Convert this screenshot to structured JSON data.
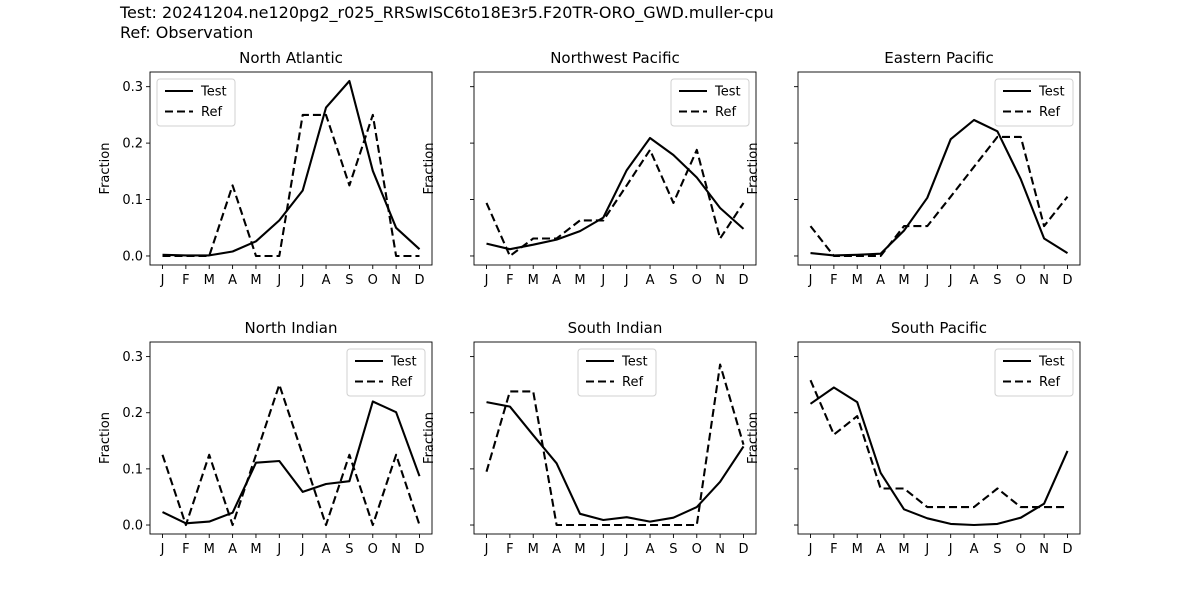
{
  "header": {
    "test_line": "Test: 20241204.ne120pg2_r025_RRSwISC6to18E3r5.F20TR-ORO_GWD.muller-cpu",
    "ref_line": "Ref: Observation"
  },
  "chart_data": [
    {
      "type": "line",
      "title": "North Atlantic",
      "xlabel": "",
      "ylabel": "Fraction",
      "categories": [
        "J",
        "F",
        "M",
        "A",
        "M",
        "J",
        "J",
        "A",
        "S",
        "O",
        "N",
        "D"
      ],
      "ylim": [
        -0.016,
        0.326
      ],
      "yticks": [
        0.0,
        0.1,
        0.2,
        0.3
      ],
      "yticklabels": [
        "0.0",
        "0.1",
        "0.2",
        "0.3"
      ],
      "legend": "top-left",
      "series": [
        {
          "name": "Test",
          "style": "solid",
          "values": [
            0.002,
            0.001,
            0.001,
            0.008,
            0.026,
            0.063,
            0.116,
            0.263,
            0.31,
            0.151,
            0.05,
            0.012
          ]
        },
        {
          "name": "Ref",
          "style": "dashed",
          "values": [
            0.0,
            0.0,
            0.0,
            0.125,
            0.0,
            0.0,
            0.25,
            0.25,
            0.125,
            0.25,
            0.0,
            0.0
          ]
        }
      ]
    },
    {
      "type": "line",
      "title": "Northwest Pacific",
      "xlabel": "",
      "ylabel": "Fraction",
      "categories": [
        "J",
        "F",
        "M",
        "A",
        "M",
        "J",
        "J",
        "A",
        "S",
        "O",
        "N",
        "D"
      ],
      "ylim": [
        -0.016,
        0.326
      ],
      "yticks": [
        0.0,
        0.1,
        0.2,
        0.3
      ],
      "yticklabels": [
        "",
        "",
        "",
        ""
      ],
      "legend": "top-right",
      "series": [
        {
          "name": "Test",
          "style": "solid",
          "values": [
            0.022,
            0.012,
            0.02,
            0.029,
            0.044,
            0.068,
            0.152,
            0.209,
            0.179,
            0.139,
            0.085,
            0.048
          ]
        },
        {
          "name": "Ref",
          "style": "dashed",
          "values": [
            0.094,
            0.0,
            0.031,
            0.031,
            0.063,
            0.063,
            0.125,
            0.188,
            0.094,
            0.188,
            0.031,
            0.094
          ]
        }
      ]
    },
    {
      "type": "line",
      "title": "Eastern Pacific",
      "xlabel": "",
      "ylabel": "Fraction",
      "categories": [
        "J",
        "F",
        "M",
        "A",
        "M",
        "J",
        "J",
        "A",
        "S",
        "O",
        "N",
        "D"
      ],
      "ylim": [
        -0.016,
        0.326
      ],
      "yticks": [
        0.0,
        0.1,
        0.2,
        0.3
      ],
      "yticklabels": [
        "",
        "",
        "",
        ""
      ],
      "legend": "top-right",
      "series": [
        {
          "name": "Test",
          "style": "solid",
          "values": [
            0.005,
            0.001,
            0.002,
            0.004,
            0.045,
            0.103,
            0.207,
            0.241,
            0.221,
            0.136,
            0.031,
            0.005
          ]
        },
        {
          "name": "Ref",
          "style": "dashed",
          "values": [
            0.053,
            0.0,
            0.0,
            0.0,
            0.053,
            0.053,
            0.105,
            0.158,
            0.211,
            0.211,
            0.053,
            0.105
          ]
        }
      ]
    },
    {
      "type": "line",
      "title": "North Indian",
      "xlabel": "",
      "ylabel": "Fraction",
      "categories": [
        "J",
        "F",
        "M",
        "A",
        "M",
        "J",
        "J",
        "A",
        "S",
        "O",
        "N",
        "D"
      ],
      "ylim": [
        -0.016,
        0.326
      ],
      "yticks": [
        0.0,
        0.1,
        0.2,
        0.3
      ],
      "yticklabels": [
        "0.0",
        "0.1",
        "0.2",
        "0.3"
      ],
      "legend": "top-right",
      "series": [
        {
          "name": "Test",
          "style": "solid",
          "values": [
            0.023,
            0.003,
            0.006,
            0.022,
            0.111,
            0.114,
            0.059,
            0.073,
            0.078,
            0.22,
            0.201,
            0.087
          ]
        },
        {
          "name": "Ref",
          "style": "dashed",
          "values": [
            0.125,
            0.0,
            0.125,
            0.0,
            0.125,
            0.25,
            0.125,
            0.0,
            0.125,
            0.0,
            0.125,
            0.0
          ]
        }
      ]
    },
    {
      "type": "line",
      "title": "South Indian",
      "xlabel": "",
      "ylabel": "Fraction",
      "categories": [
        "J",
        "F",
        "M",
        "A",
        "M",
        "J",
        "J",
        "A",
        "S",
        "O",
        "N",
        "D"
      ],
      "ylim": [
        -0.016,
        0.326
      ],
      "yticks": [
        0.0,
        0.1,
        0.2,
        0.3
      ],
      "yticklabels": [
        "",
        "",
        "",
        ""
      ],
      "legend": "top-center",
      "series": [
        {
          "name": "Test",
          "style": "solid",
          "values": [
            0.219,
            0.211,
            0.16,
            0.11,
            0.02,
            0.009,
            0.014,
            0.006,
            0.013,
            0.032,
            0.077,
            0.14
          ]
        },
        {
          "name": "Ref",
          "style": "dashed",
          "values": [
            0.095,
            0.238,
            0.238,
            0.0,
            0.0,
            0.0,
            0.0,
            0.0,
            0.0,
            0.0,
            0.286,
            0.143
          ]
        }
      ]
    },
    {
      "type": "line",
      "title": "South Pacific",
      "xlabel": "",
      "ylabel": "Fraction",
      "categories": [
        "J",
        "F",
        "M",
        "A",
        "M",
        "J",
        "J",
        "A",
        "S",
        "O",
        "N",
        "D"
      ],
      "ylim": [
        -0.016,
        0.326
      ],
      "yticks": [
        0.0,
        0.1,
        0.2,
        0.3
      ],
      "yticklabels": [
        "",
        "",
        "",
        ""
      ],
      "legend": "top-right",
      "series": [
        {
          "name": "Test",
          "style": "solid",
          "values": [
            0.216,
            0.245,
            0.219,
            0.093,
            0.028,
            0.012,
            0.002,
            0.0,
            0.002,
            0.013,
            0.038,
            0.132
          ]
        },
        {
          "name": "Ref",
          "style": "dashed",
          "values": [
            0.258,
            0.161,
            0.194,
            0.065,
            0.065,
            0.032,
            0.032,
            0.032,
            0.065,
            0.032,
            0.032,
            0.032
          ]
        }
      ]
    }
  ]
}
